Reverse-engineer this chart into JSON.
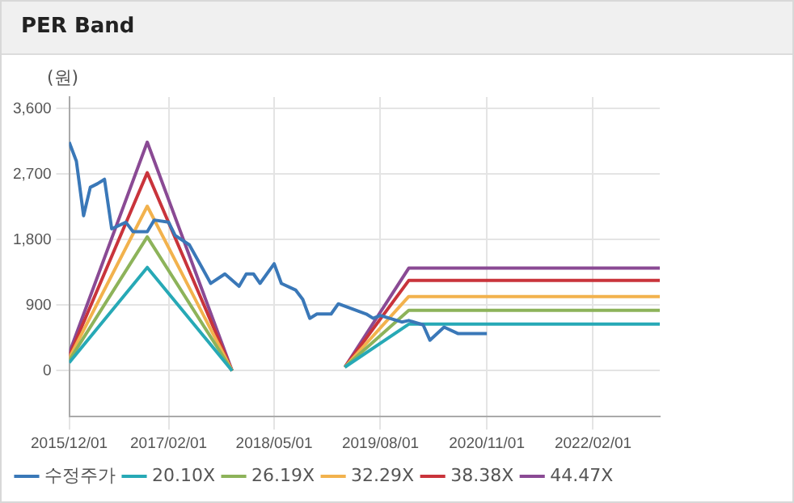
{
  "chart_data": {
    "type": "line",
    "title": "PER Band",
    "ylabel": "(원)",
    "xlim": [
      "2015-12-01",
      "2022-11-15"
    ],
    "xticks": [
      {
        "value": "2015-12-01",
        "label": "2015/12/01"
      },
      {
        "value": "2017-02-01",
        "label": "2017/02/01"
      },
      {
        "value": "2018-05-01",
        "label": "2018/05/01"
      },
      {
        "value": "2019-08-01",
        "label": "2019/08/01"
      },
      {
        "value": "2020-11-01",
        "label": "2020/11/01"
      },
      {
        "value": "2022-02-01",
        "label": "2022/02/01"
      }
    ],
    "ylim": [
      -630,
      3760
    ],
    "yticks": [
      0,
      900,
      {
        "value": 1800,
        "label": "1,800"
      },
      {
        "value": 2700,
        "label": "2,700"
      },
      {
        "value": 3600,
        "label": "3,600"
      }
    ],
    "grid": true,
    "legend": "bottom",
    "marker": "none",
    "line_style": "solid",
    "series": [
      {
        "name": "수정주가",
        "color": "#3a78b8",
        "x": [
          "2015-12",
          "2016-01",
          "2016-02",
          "2016-03",
          "2016-04",
          "2016-05",
          "2016-06",
          "2016-08",
          "2016-09",
          "2016-11",
          "2016-12",
          "2017-02",
          "2017-03",
          "2017-05",
          "2017-07",
          "2017-08",
          "2017-10",
          "2017-12",
          "2018-01",
          "2018-02",
          "2018-03",
          "2018-05",
          "2018-06",
          "2018-08",
          "2018-09",
          "2018-10",
          "2018-11",
          "2019-01",
          "2019-02",
          "2019-04",
          "2019-06",
          "2019-07",
          "2019-08",
          "2019-11",
          "2019-12",
          "2020-02",
          "2020-03",
          "2020-05",
          "2020-07",
          "2020-11"
        ],
        "values": [
          3140,
          2880,
          2130,
          2520,
          2570,
          2630,
          1950,
          2040,
          1910,
          1910,
          2070,
          2040,
          1860,
          1730,
          1380,
          1200,
          1330,
          1160,
          1330,
          1330,
          1200,
          1470,
          1200,
          1110,
          980,
          720,
          780,
          780,
          920,
          850,
          780,
          720,
          760,
          670,
          690,
          630,
          420,
          600,
          510,
          510
        ]
      },
      {
        "name": "20.10X",
        "color": "#27a9b6",
        "x": [
          "2015-12-01",
          "2016-11-01",
          "2017-11-01",
          "2018-07-01",
          "2019-03-01",
          "2019-12-01",
          "2022-11-15"
        ],
        "values": [
          110,
          1420,
          0,
          null,
          50,
          640,
          640
        ]
      },
      {
        "name": "26.19X",
        "color": "#8db35a",
        "x": [
          "2015-12-01",
          "2016-11-01",
          "2017-11-01",
          "2018-07-01",
          "2019-03-01",
          "2019-12-01",
          "2022-11-15"
        ],
        "values": [
          140,
          1840,
          0,
          null,
          50,
          830,
          830
        ]
      },
      {
        "name": "32.29X",
        "color": "#f2b24d",
        "x": [
          "2015-12-01",
          "2016-11-01",
          "2017-11-01",
          "2018-07-01",
          "2019-03-01",
          "2019-12-01",
          "2022-11-15"
        ],
        "values": [
          170,
          2260,
          0,
          null,
          50,
          1020,
          1020
        ]
      },
      {
        "name": "38.38X",
        "color": "#c9343b",
        "x": [
          "2015-12-01",
          "2016-11-01",
          "2017-11-01",
          "2018-07-01",
          "2019-03-01",
          "2019-12-01",
          "2022-11-15"
        ],
        "values": [
          200,
          2720,
          0,
          null,
          50,
          1240,
          1240
        ]
      },
      {
        "name": "44.47X",
        "color": "#8a4a94",
        "x": [
          "2015-12-01",
          "2016-11-01",
          "2017-11-01",
          "2018-07-01",
          "2019-03-01",
          "2019-12-01",
          "2022-11-15"
        ],
        "values": [
          240,
          3140,
          0,
          null,
          50,
          1410,
          1410
        ]
      }
    ]
  }
}
